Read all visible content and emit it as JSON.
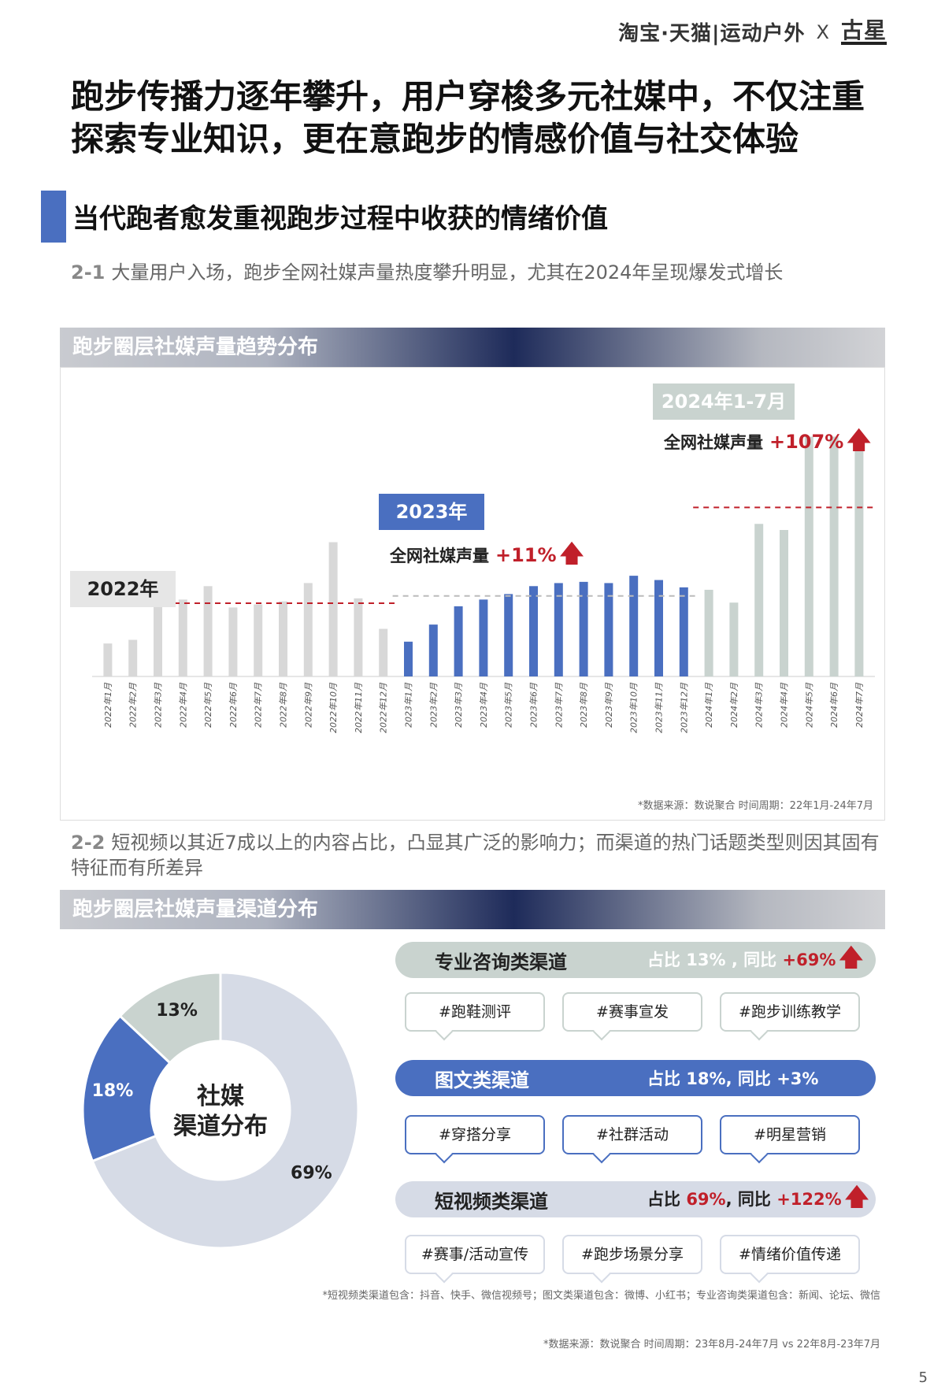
{
  "brand": {
    "left": "淘宝·天猫|运动户外",
    "x": "X",
    "logo": "古星"
  },
  "headline": "跑步传播力逐年攀升，用户穿梭多元社媒中，不仅注重探索专业知识，更在意跑步的情感价值与社交体验",
  "section_title": "当代跑者愈发重视跑步过程中收获的情绪价值",
  "sub1": {
    "num": "2-1",
    "text": "大量用户入场，跑步全网社媒声量热度攀升明显，尤其在2024年呈现爆发式增长"
  },
  "banner1": "跑步圈层社媒声量趋势分布",
  "year_tags": {
    "y2022": "2022年",
    "y2023": "2023年",
    "y2024": "2024年1-7月"
  },
  "growth_2023": {
    "label": "全网社媒声量",
    "pct": "+11%"
  },
  "growth_2024": {
    "label": "全网社媒声量",
    "pct": "+107%"
  },
  "arrow_glyph": "🡅",
  "source1": "*数据来源：数说聚合 时间周期：22年1月-24年7月",
  "sub2": {
    "num": "2-2",
    "text": "短视频以其近7成以上的内容占比，凸显其广泛的影响力；而渠道的热门话题类型则因其固有特征而有所差异"
  },
  "banner2": "跑步圈层社媒声量渠道分布",
  "chart_data": [
    {
      "type": "bar",
      "title": "跑步圈层社媒声量趋势分布",
      "categories": [
        "2022年1月",
        "2022年2月",
        "2022年3月",
        "2022年4月",
        "2022年5月",
        "2022年6月",
        "2022年7月",
        "2022年8月",
        "2022年9月",
        "2022年10月",
        "2022年11月",
        "2022年12月",
        "2023年1月",
        "2023年2月",
        "2023年3月",
        "2023年4月",
        "2023年5月",
        "2023年6月",
        "2023年7月",
        "2023年8月",
        "2023年9月",
        "2023年10月",
        "2023年11月",
        "2023年12月",
        "2024年1月",
        "2024年2月",
        "2024年3月",
        "2024年4月",
        "2024年5月",
        "2024年6月",
        "2024年7月"
      ],
      "values": [
        54,
        60,
        118,
        126,
        148,
        113,
        118,
        123,
        153,
        220,
        128,
        78,
        57,
        85,
        115,
        126,
        135,
        148,
        153,
        155,
        153,
        165,
        158,
        146,
        142,
        121,
        250,
        240,
        393,
        393,
        393
      ],
      "colors": {
        "2022": "#d8d8d8",
        "2023": "#4a6fc0",
        "2024": "#c9d3cf"
      },
      "averages": {
        "2022": 120,
        "2023": 132,
        "2024": 277
      },
      "ylim": [
        0,
        400
      ]
    },
    {
      "type": "pie",
      "title": "社媒渠道分布",
      "center_label": [
        "社媒",
        "渠道分布"
      ],
      "slices": [
        {
          "name": "短视频类渠道",
          "value": 69,
          "label": "69%",
          "color": "#d6dbe6"
        },
        {
          "name": "图文类渠道",
          "value": 18,
          "label": "18%",
          "color": "#4a6fc0"
        },
        {
          "name": "专业咨询类渠道",
          "value": 13,
          "label": "13%",
          "color": "#c9d3cf"
        }
      ]
    }
  ],
  "channels": [
    {
      "name": "专业咨询类渠道",
      "stat_prefix": "占比 13% , 同比",
      "stat_value": "+69%",
      "tags": [
        "#跑鞋测评",
        "#赛事宣发",
        "#跑步训练教学"
      ]
    },
    {
      "name": "图文类渠道",
      "stat_prefix": "占比 18%, 同比",
      "stat_value": "+3%",
      "tags": [
        "#穿搭分享",
        "#社群活动",
        "#明星营销"
      ]
    },
    {
      "name": "短视频类渠道",
      "stat_prefix": "占比",
      "stat_pct": "69%",
      "stat_mid": ", 同比",
      "stat_value": "+122%",
      "tags": [
        "#赛事/活动宣传",
        "#跑步场景分享",
        "#情绪价值传递"
      ]
    }
  ],
  "footnote": "*短视频类渠道包含：抖音、快手、微信视频号；图文类渠道包含：微博、小红书；专业咨询类渠道包含：新闻、论坛、微信",
  "source2": "*数据来源：数说聚合 时间周期：23年8月-24年7月 vs 22年8月-23年7月",
  "page_number": "5"
}
